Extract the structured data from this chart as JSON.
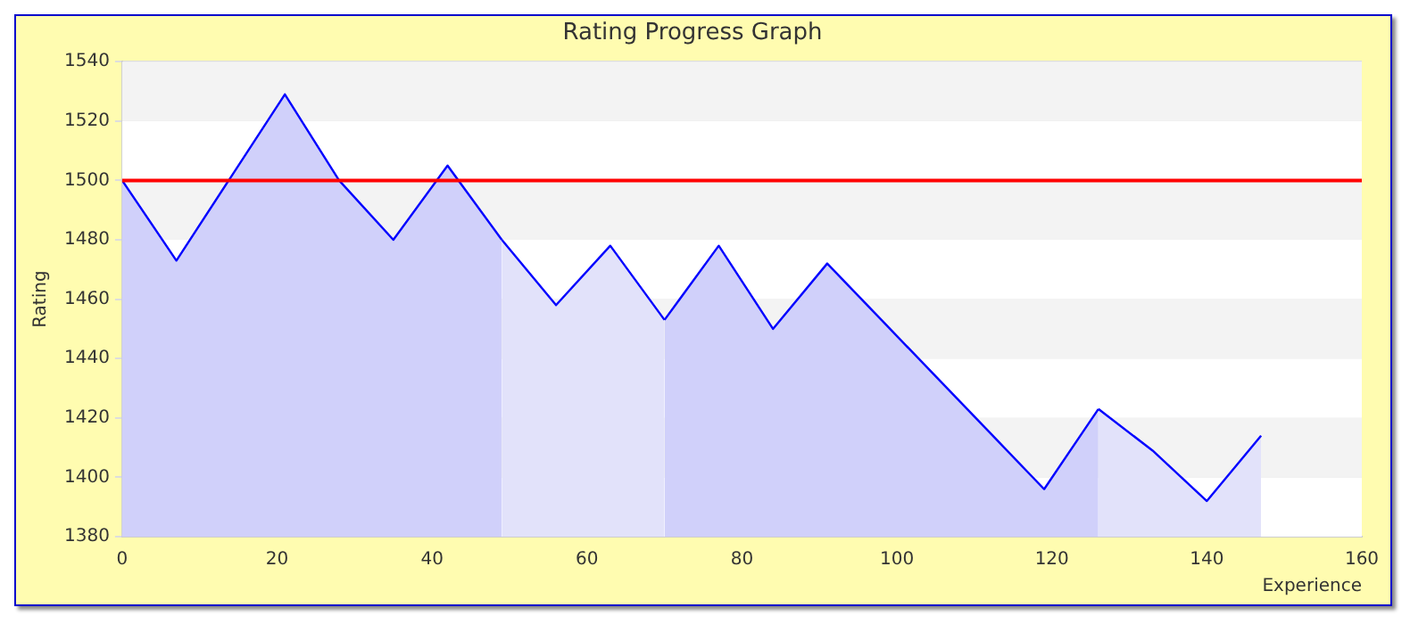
{
  "chart_data": {
    "type": "area",
    "title": "Rating Progress Graph",
    "xlabel": "Experience",
    "ylabel": "Rating",
    "series": [
      {
        "color": "#0000ff",
        "colors": [
          "#d0d0fa",
          "#d0d0fa",
          "#d0d0fa",
          "#d0d0fa",
          "#d0d0fa",
          "#d0d0fa",
          "#d0d0fa",
          "#d0d0fa"
        ],
        "x": [
          0,
          7,
          14,
          21,
          28,
          35,
          42,
          49
        ],
        "values": [
          1500,
          1473,
          1501,
          1529,
          1500,
          1480,
          1505,
          1480
        ]
      },
      {
        "color": "#0000ff",
        "colors": [
          "#e2e2fa",
          "#e2e2fa",
          "#e2e2fa",
          "#e2e2fa"
        ],
        "x": [
          49,
          56,
          63,
          70
        ],
        "values": [
          1480,
          1458,
          1478,
          1453
        ]
      },
      {
        "color": "#0000ff",
        "colors": [
          "#d0d0fa",
          "#d0d0fa",
          "#d0d0fa",
          "#d0d0fa",
          "#d0d0fa",
          "#d0d0fa",
          "#d0d0fa",
          "#d0d0fa",
          "#d0d0fa"
        ],
        "x": [
          70,
          77,
          84,
          91,
          98,
          105,
          112,
          119,
          126
        ],
        "values": [
          1453,
          1478,
          1450,
          1472,
          1453,
          1434,
          1415,
          1396,
          1423
        ]
      },
      {
        "color": "#0000ff",
        "colors": [
          "#e2e2fa",
          "#e2e2fa",
          "#e2e2fa",
          "#e2e2fa"
        ],
        "x": [
          126,
          133,
          140,
          147
        ],
        "values": [
          1423,
          1409,
          1392,
          1414
        ]
      }
    ],
    "xlim": [
      0,
      160
    ],
    "xticks": [
      0,
      20,
      40,
      60,
      80,
      100,
      120,
      140,
      160
    ],
    "ylim": [
      1380,
      1540
    ],
    "yticks": [
      1380,
      1400,
      1420,
      1440,
      1460,
      1480,
      1500,
      1520,
      1540
    ],
    "grid": "y",
    "legend": false,
    "marker": "none",
    "line_style": "solid",
    "ref_lines": [
      {
        "axis": "y",
        "value": 1500,
        "color": "#ff0000"
      }
    ]
  }
}
